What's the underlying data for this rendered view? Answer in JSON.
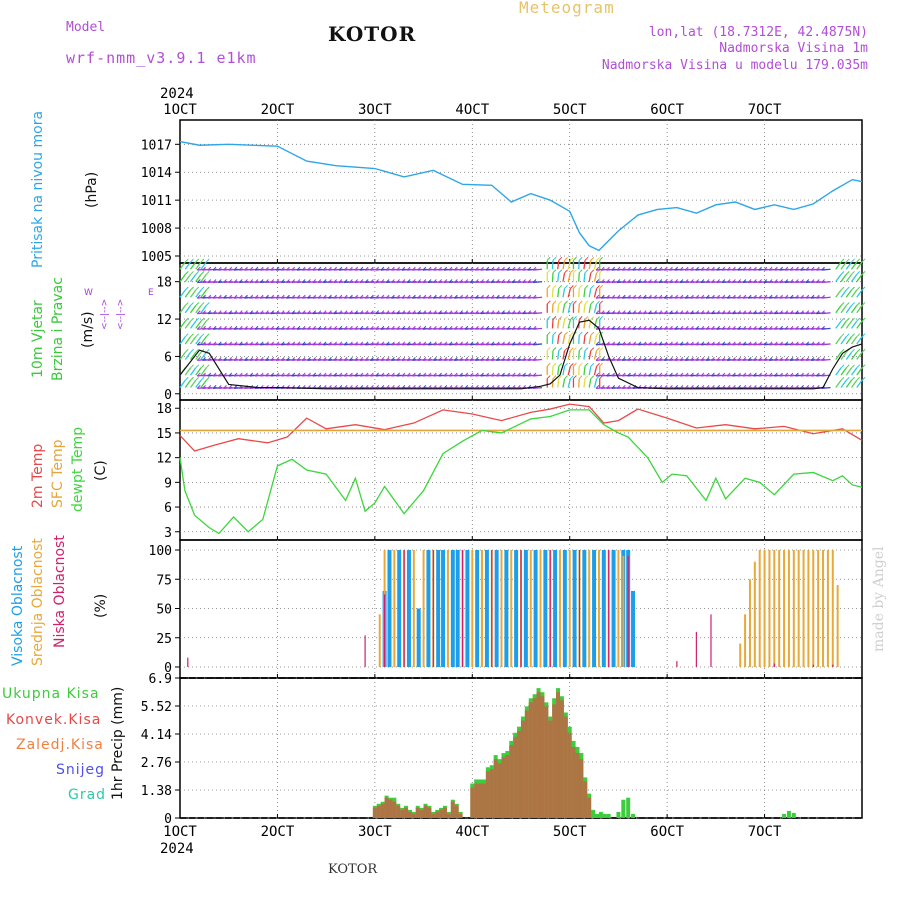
{
  "header": {
    "model_label": "Model",
    "model_name": "wrf-nmm_v3.9.1 e1km",
    "title": "KOTOR",
    "meteogram_label": "Meteogram",
    "location": "lon,lat (18.7312E, 42.4875N)",
    "altitude": "Nadmorska Visina 1m",
    "model_altitude": "Nadmorska Visina u modelu 179.035m",
    "footer": "KOTOR",
    "watermark": "made by Angel"
  },
  "colors": {
    "pressure": "#2ea6e6",
    "temp": "#e84a4a",
    "sfc": "#e4a63a",
    "dew": "#3cd63c",
    "high_cloud": "#1e9ee8",
    "mid_cloud": "#e8a83a",
    "low_cloud": "#d0206a",
    "total_precip": "#3ccc3c",
    "conv_precip": "#e84848",
    "frozen": "#f08040",
    "snow": "#5050e8",
    "graupel": "#30c8a8",
    "wind_purple": "#a03cd8",
    "wind_dark": "#4646c8"
  },
  "x_axis": {
    "ticks": [
      "1OCT",
      "2OCT",
      "3OCT",
      "4OCT",
      "5OCT",
      "6OCT",
      "7OCT"
    ],
    "year": "2024"
  },
  "panels": {
    "pressure": {
      "label": "Pritisak na nivou mora",
      "unit": "(hPa)"
    },
    "wind": {
      "label1": "10m Vjetar",
      "label2": "Brzina i Pravac",
      "unit": "(m/s)",
      "compass": [
        "W",
        "<--|-->",
        "E"
      ],
      "compass2": [
        "S",
        "<--|-->",
        "N"
      ]
    },
    "temp": {
      "label1": "2m Temp",
      "label2": "SFC Temp",
      "label3": "dewpt Temp",
      "unit": "(C)"
    },
    "cloud": {
      "label1": "Visoka Oblacnost",
      "label2": "Srednja Oblacnost",
      "label3": "Niska Oblacnost",
      "unit": "(%)"
    },
    "precip": {
      "unit": "1hr Precip (mm)",
      "legend": [
        "Ukupna Kisa",
        "Konvek.Kisa",
        "Zaledj.Kisa",
        "Snijeg",
        "Grad"
      ]
    }
  },
  "chart_data": [
    {
      "type": "line",
      "title": "Pritisak na nivou mora",
      "ylabel": "(hPa)",
      "ylim": [
        1005,
        1018
      ],
      "yticks": [
        1005,
        1008,
        1011,
        1014,
        1017
      ],
      "series": [
        {
          "name": "Pritisak na nivou mora",
          "x": [
            0,
            0.2,
            0.5,
            1.0,
            1.3,
            1.6,
            2.0,
            2.3,
            2.6,
            2.9,
            3.2,
            3.4,
            3.6,
            3.8,
            4.0,
            4.1,
            4.2,
            4.3,
            4.5,
            4.7,
            4.9,
            5.1,
            5.3,
            5.5,
            5.7,
            5.9,
            6.1,
            6.3,
            6.5,
            6.7,
            6.9,
            7.0
          ],
          "values": [
            1017.3,
            1016.9,
            1017.0,
            1016.8,
            1015.2,
            1014.7,
            1014.4,
            1013.5,
            1014.2,
            1012.7,
            1012.6,
            1010.8,
            1011.7,
            1011.0,
            1009.8,
            1007.5,
            1006.1,
            1005.6,
            1007.7,
            1009.4,
            1010.0,
            1010.2,
            1009.6,
            1010.5,
            1010.8,
            1010.0,
            1010.5,
            1010.0,
            1010.6,
            1012.0,
            1013.2,
            1013.0
          ]
        }
      ]
    },
    {
      "type": "line",
      "title": "10m Vjetar Brzina i Pravac",
      "ylabel": "(m/s)",
      "ylim": [
        -1,
        21
      ],
      "yticks": [
        0,
        6,
        12,
        18
      ],
      "series": [
        {
          "name": "Brzina",
          "x": [
            0,
            0.1,
            0.2,
            0.3,
            0.5,
            0.8,
            1.0,
            1.5,
            2.0,
            2.5,
            3.0,
            3.5,
            3.7,
            3.8,
            3.9,
            4.0,
            4.1,
            4.2,
            4.3,
            4.4,
            4.5,
            4.7,
            5.0,
            5.5,
            6.0,
            6.5,
            6.6,
            6.7,
            6.8,
            6.9,
            7.0
          ],
          "values": [
            3.0,
            5.0,
            7.0,
            6.5,
            1.5,
            1.0,
            1.0,
            0.8,
            0.8,
            0.8,
            0.8,
            0.8,
            1.2,
            1.6,
            3.0,
            8.0,
            11.5,
            11.8,
            10.5,
            6.0,
            2.5,
            1.0,
            0.8,
            0.8,
            0.8,
            0.8,
            1.0,
            4.0,
            6.5,
            7.5,
            8.0
          ]
        }
      ]
    },
    {
      "type": "line",
      "title": "2m Temp / SFC Temp / dewpt Temp",
      "ylabel": "(C)",
      "ylim": [
        2,
        19
      ],
      "yticks": [
        3,
        6,
        9,
        12,
        15,
        18
      ],
      "series": [
        {
          "name": "2m Temp",
          "x": [
            0,
            0.15,
            0.35,
            0.6,
            0.9,
            1.1,
            1.3,
            1.5,
            1.8,
            2.1,
            2.4,
            2.7,
            3.0,
            3.3,
            3.6,
            3.8,
            4.0,
            4.2,
            4.35,
            4.5,
            4.7,
            5.0,
            5.3,
            5.6,
            5.9,
            6.2,
            6.5,
            6.8,
            7.0
          ],
          "values": [
            14.7,
            12.8,
            13.5,
            14.3,
            13.8,
            14.5,
            16.8,
            15.5,
            16.0,
            15.4,
            16.2,
            17.8,
            17.3,
            16.5,
            17.5,
            17.9,
            18.5,
            18.2,
            16.2,
            16.5,
            17.9,
            16.8,
            15.6,
            16.0,
            15.5,
            15.8,
            14.9,
            15.5,
            14.1
          ]
        },
        {
          "name": "SFC Temp",
          "x": [
            0,
            7.0
          ],
          "values": [
            15.3,
            15.3
          ]
        },
        {
          "name": "dewpt Temp",
          "x": [
            0,
            0.05,
            0.15,
            0.3,
            0.4,
            0.55,
            0.7,
            0.85,
            1.0,
            1.15,
            1.3,
            1.5,
            1.7,
            1.8,
            1.9,
            2.0,
            2.1,
            2.3,
            2.5,
            2.7,
            2.9,
            3.1,
            3.3,
            3.6,
            3.8,
            4.0,
            4.2,
            4.35,
            4.5,
            4.6,
            4.8,
            4.95,
            5.05,
            5.2,
            5.4,
            5.5,
            5.6,
            5.8,
            5.95,
            6.1,
            6.3,
            6.5,
            6.7,
            6.8,
            6.9,
            7.0
          ],
          "values": [
            12.0,
            8.0,
            5.0,
            3.5,
            2.8,
            4.8,
            3.0,
            4.5,
            11.0,
            11.8,
            10.5,
            10.0,
            6.8,
            9.5,
            5.5,
            6.5,
            8.5,
            5.2,
            8.0,
            12.5,
            14.0,
            15.3,
            15.0,
            16.7,
            17.0,
            17.8,
            17.8,
            16.0,
            15.0,
            14.5,
            12.0,
            9.0,
            10.0,
            9.8,
            6.8,
            9.5,
            7.0,
            9.5,
            9.0,
            7.5,
            10.0,
            10.2,
            9.2,
            9.8,
            8.7,
            8.4
          ]
        }
      ]
    },
    {
      "type": "bar",
      "title": "Oblacnost",
      "ylabel": "(%)",
      "ylim": [
        0,
        100
      ],
      "yticks": [
        0,
        25,
        50,
        75,
        100
      ],
      "series": [
        {
          "name": "Visoka Oblacnost",
          "x": [
            2.1,
            2.15,
            2.25,
            2.35,
            2.45,
            2.55,
            2.65,
            2.7,
            2.8,
            2.85,
            2.95,
            3.05,
            3.15,
            3.25,
            3.35,
            3.45,
            3.55,
            3.65,
            3.75,
            3.85,
            3.95,
            4.05,
            4.15,
            4.25,
            4.35,
            4.45,
            4.55,
            4.6,
            4.65
          ],
          "values": [
            65,
            100,
            100,
            100,
            50,
            100,
            100,
            100,
            100,
            100,
            100,
            100,
            100,
            100,
            100,
            100,
            100,
            100,
            100,
            100,
            100,
            100,
            100,
            100,
            100,
            100,
            100,
            100,
            65
          ]
        },
        {
          "name": "Srednja Oblacnost",
          "x": [
            2.05,
            2.1,
            2.2,
            2.3,
            2.4,
            2.5,
            2.6,
            2.75,
            2.9,
            3.0,
            3.1,
            3.2,
            3.3,
            3.4,
            3.5,
            3.6,
            3.7,
            3.8,
            3.9,
            4.0,
            4.1,
            4.2,
            4.3,
            4.4,
            4.5,
            4.55,
            5.75,
            5.8,
            5.85,
            5.9,
            5.95,
            6.0,
            6.05,
            6.1,
            6.15,
            6.2,
            6.25,
            6.3,
            6.35,
            6.4,
            6.45,
            6.5,
            6.55,
            6.6,
            6.65,
            6.7,
            6.75
          ],
          "values": [
            45,
            100,
            100,
            100,
            100,
            100,
            100,
            100,
            100,
            100,
            100,
            100,
            100,
            100,
            100,
            100,
            100,
            100,
            100,
            100,
            100,
            100,
            100,
            100,
            100,
            95,
            20,
            45,
            75,
            90,
            100,
            100,
            100,
            100,
            100,
            100,
            100,
            100,
            100,
            100,
            100,
            100,
            100,
            100,
            100,
            100,
            70
          ]
        },
        {
          "name": "Niska Oblacnost",
          "x": [
            0.08,
            1.9,
            2.1,
            2.3,
            2.6,
            2.9,
            3.2,
            3.5,
            3.8,
            4.1,
            4.4,
            4.6,
            5.1,
            5.3,
            5.45,
            6.1,
            6.5,
            6.7
          ],
          "values": [
            8,
            27,
            62,
            100,
            100,
            100,
            100,
            100,
            100,
            100,
            100,
            95,
            5,
            30,
            45,
            3,
            2,
            2
          ]
        }
      ]
    },
    {
      "type": "bar",
      "title": "1hr Precip",
      "ylabel": "1hr Precip (mm)",
      "ylim": [
        0,
        6.9
      ],
      "yticks": [
        0,
        1.38,
        2.76,
        4.14,
        5.52,
        6.9
      ],
      "series": [
        {
          "name": "Ukupna Kisa",
          "x": [
            2.0,
            2.04,
            2.08,
            2.12,
            2.16,
            2.2,
            2.24,
            2.28,
            2.32,
            2.36,
            2.4,
            2.44,
            2.48,
            2.52,
            2.56,
            2.6,
            2.64,
            2.68,
            2.72,
            2.76,
            2.8,
            2.84,
            2.88,
            3.0,
            3.04,
            3.08,
            3.12,
            3.16,
            3.2,
            3.24,
            3.28,
            3.32,
            3.36,
            3.4,
            3.44,
            3.48,
            3.52,
            3.56,
            3.6,
            3.64,
            3.68,
            3.72,
            3.76,
            3.8,
            3.84,
            3.88,
            3.92,
            3.96,
            4.0,
            4.04,
            4.08,
            4.12,
            4.16,
            4.2,
            4.24,
            4.28,
            4.32,
            4.36,
            4.4,
            4.5,
            4.55,
            4.6,
            4.65,
            6.2,
            6.25,
            6.3
          ],
          "values": [
            0.6,
            0.7,
            0.8,
            1.1,
            1.0,
            1.0,
            0.7,
            0.5,
            0.6,
            0.4,
            0.3,
            0.6,
            0.5,
            0.7,
            0.6,
            0.3,
            0.4,
            0.5,
            0.6,
            0.3,
            0.9,
            0.7,
            0.3,
            1.7,
            1.9,
            1.9,
            1.9,
            2.5,
            2.6,
            3.1,
            2.9,
            3.2,
            3.3,
            3.8,
            4.2,
            4.5,
            5.0,
            5.5,
            5.9,
            6.1,
            6.4,
            6.2,
            5.7,
            5.0,
            5.9,
            6.4,
            6.0,
            5.2,
            4.5,
            3.8,
            3.5,
            3.2,
            2.0,
            1.2,
            0.4,
            0.2,
            0.3,
            0.2,
            0.2,
            0.3,
            0.9,
            1.0,
            0.2,
            0.2,
            0.35,
            0.25
          ]
        },
        {
          "name": "Konvek.Kisa",
          "x": [
            2.0,
            2.04,
            2.08,
            2.12,
            2.16,
            2.2,
            2.24,
            2.28,
            2.32,
            2.36,
            2.4,
            2.44,
            2.48,
            2.52,
            2.56,
            2.6,
            2.64,
            2.68,
            2.72,
            2.76,
            2.8,
            2.84,
            2.88,
            3.0,
            3.04,
            3.08,
            3.12,
            3.16,
            3.2,
            3.24,
            3.28,
            3.32,
            3.36,
            3.4,
            3.44,
            3.48,
            3.52,
            3.56,
            3.6,
            3.64,
            3.68,
            3.72,
            3.76,
            3.8,
            3.84,
            3.88,
            3.92,
            3.96,
            4.0,
            4.04,
            4.08,
            4.12,
            4.16,
            4.2
          ],
          "values": [
            0.5,
            0.6,
            0.7,
            1.0,
            0.9,
            0.8,
            0.6,
            0.4,
            0.5,
            0.3,
            0.2,
            0.5,
            0.4,
            0.6,
            0.5,
            0.2,
            0.3,
            0.4,
            0.5,
            0.2,
            0.8,
            0.6,
            0.2,
            1.5,
            1.7,
            1.7,
            1.7,
            2.3,
            2.4,
            2.9,
            2.7,
            3.0,
            3.1,
            3.6,
            4.0,
            4.3,
            4.8,
            5.3,
            5.7,
            5.9,
            6.2,
            6.0,
            5.5,
            4.8,
            5.6,
            6.2,
            5.8,
            5.0,
            4.2,
            3.5,
            3.2,
            2.9,
            1.8,
            1.0
          ]
        }
      ]
    }
  ]
}
